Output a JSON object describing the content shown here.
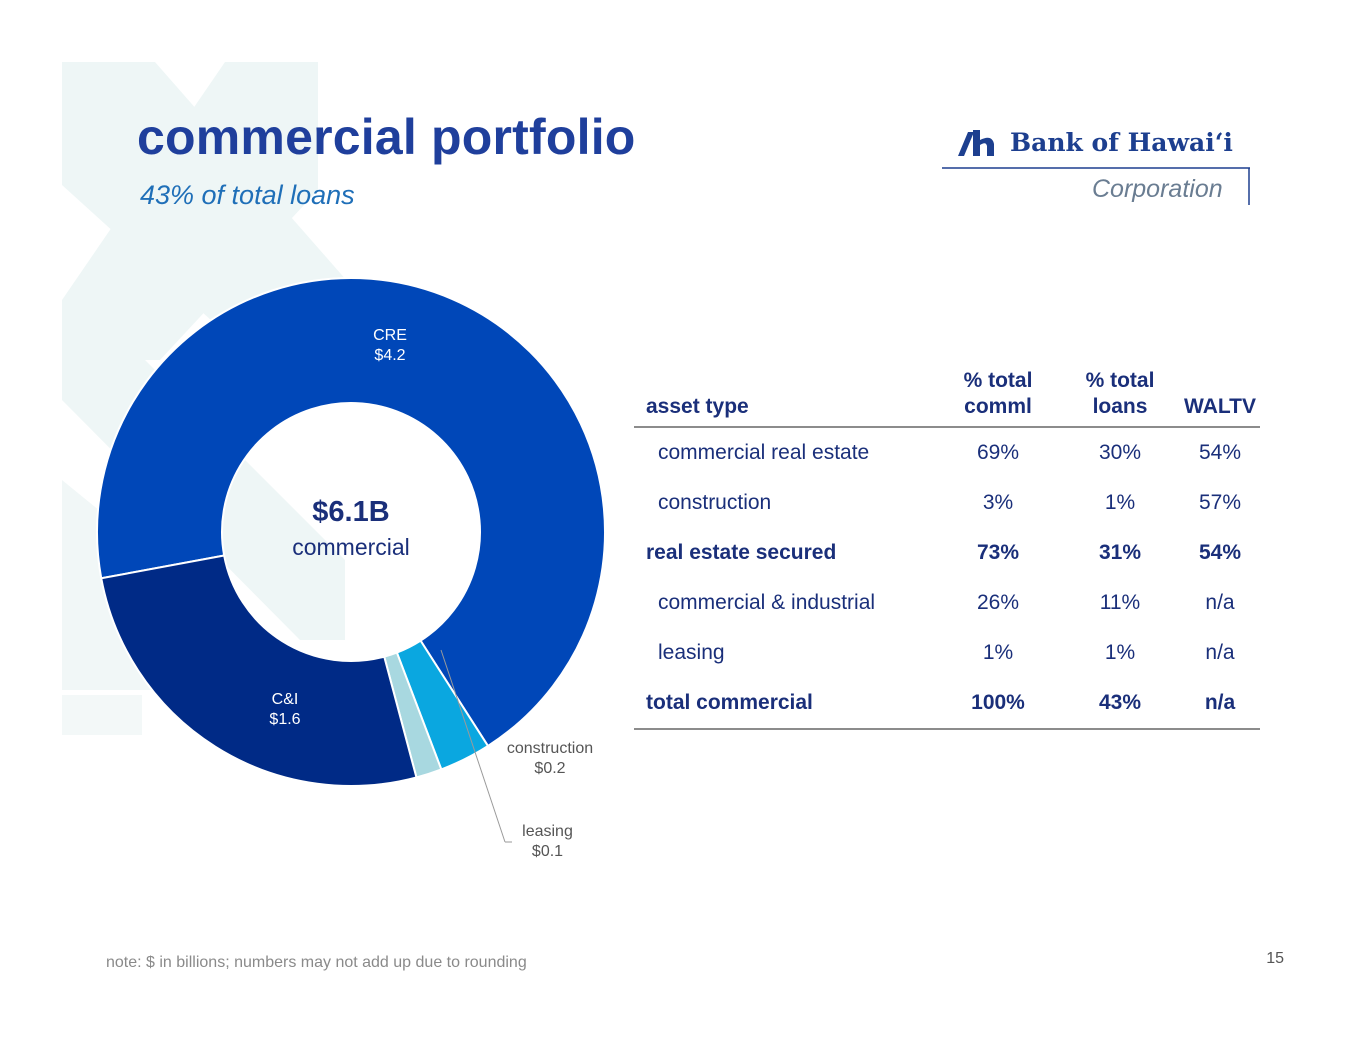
{
  "slide": {
    "title": "commercial portfolio",
    "subtitle": "43% of total loans",
    "footnote": "note: $ in billions; numbers may not add up due to rounding",
    "page_number": "15"
  },
  "logo": {
    "name": "Bank of Hawaiʻi",
    "sub": "Corporation"
  },
  "center": {
    "value": "$6.1B",
    "label": "commercial"
  },
  "colors": {
    "title": "#1f3f9c",
    "subtitle": "#1f6fb8",
    "cre": "#0047b8",
    "construction": "#0aa7e0",
    "leasing": "#a8d8e0",
    "ci": "#002a86",
    "text_dark": "#1a2f7a"
  },
  "chart_data": {
    "type": "pie",
    "variant": "donut",
    "units": "$ billions",
    "total_label": "$6.1B",
    "slices": [
      {
        "name": "CRE",
        "value": 4.2,
        "label": "$4.2",
        "color": "#0047b8"
      },
      {
        "name": "construction",
        "value": 0.2,
        "label": "$0.2",
        "color": "#0aa7e0"
      },
      {
        "name": "leasing",
        "value": 0.1,
        "label": "$0.1",
        "color": "#a8d8e0"
      },
      {
        "name": "C&I",
        "value": 1.6,
        "label": "$1.6",
        "color": "#002a86"
      }
    ]
  },
  "table": {
    "headers": {
      "asset_type": "asset type",
      "pct_comml_1": "% total",
      "pct_comml_2": "comml",
      "pct_loans_1": "% total",
      "pct_loans_2": "loans",
      "waltv": "WALTV"
    },
    "rows": [
      {
        "type": "commercial real estate",
        "pct_comml": "69%",
        "pct_loans": "30%",
        "waltv": "54%"
      },
      {
        "type": "construction",
        "pct_comml": "3%",
        "pct_loans": "1%",
        "waltv": "57%"
      },
      {
        "type": "real estate secured",
        "pct_comml": "73%",
        "pct_loans": "31%",
        "waltv": "54%"
      },
      {
        "type": "commercial & industrial",
        "pct_comml": "26%",
        "pct_loans": "11%",
        "waltv": "n/a"
      },
      {
        "type": "leasing",
        "pct_comml": "1%",
        "pct_loans": "1%",
        "waltv": "n/a"
      },
      {
        "type": "total commercial",
        "pct_comml": "100%",
        "pct_loans": "43%",
        "waltv": "n/a"
      }
    ]
  }
}
